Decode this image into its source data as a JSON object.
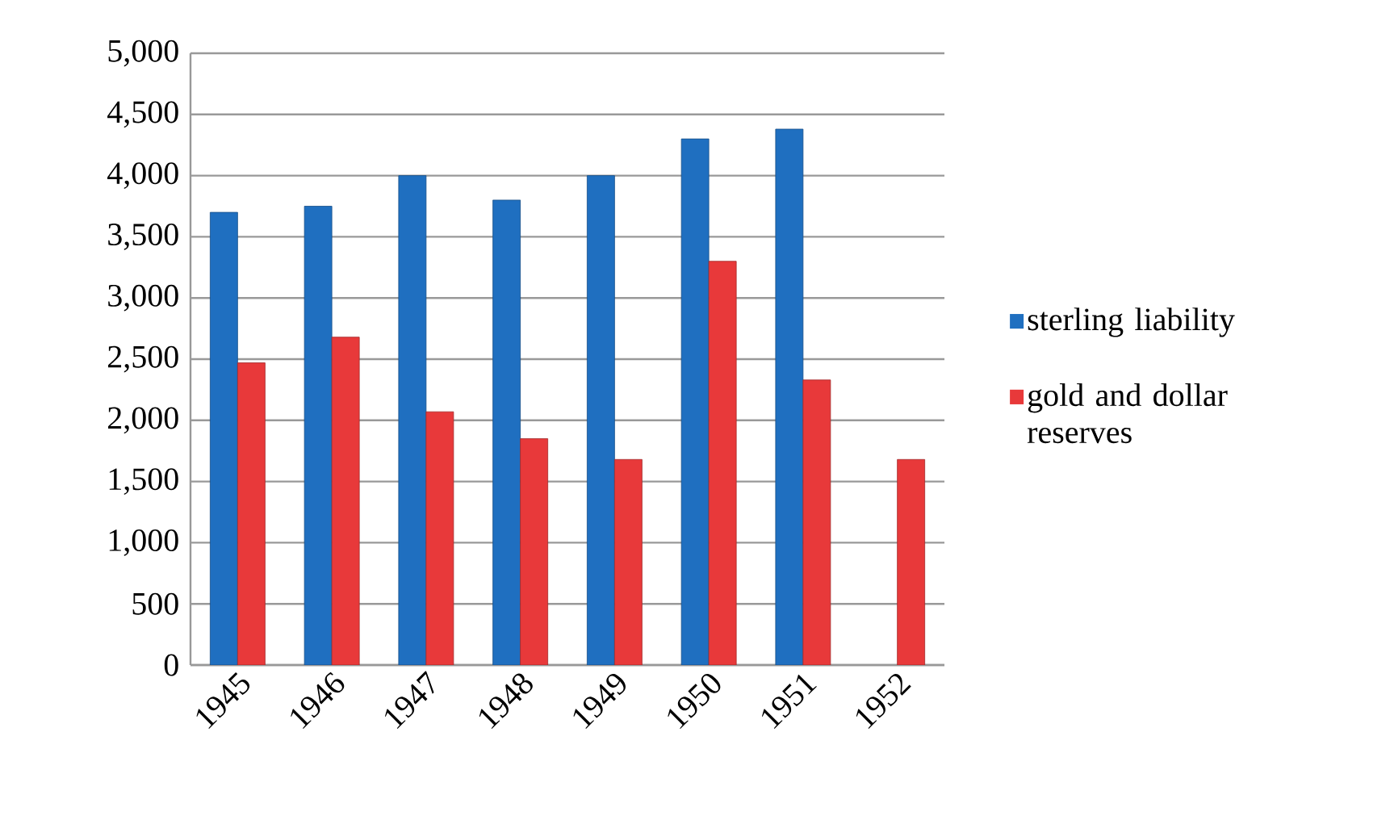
{
  "chart_data": {
    "type": "bar",
    "categories": [
      "1945",
      "1946",
      "1947",
      "1948",
      "1949",
      "1950",
      "1951",
      "1952"
    ],
    "series": [
      {
        "name": "sterling liability",
        "color": "#1f6fc0",
        "values": [
          3700,
          3750,
          4000,
          3800,
          4000,
          4300,
          4380,
          null
        ]
      },
      {
        "name": "gold and dollar reserves",
        "color": "#e8393a",
        "values": [
          2470,
          2680,
          2070,
          1850,
          1680,
          3300,
          2330,
          1680
        ]
      }
    ],
    "ylim": [
      0,
      5000
    ],
    "yticks": [
      {
        "value": 0,
        "label": "0"
      },
      {
        "value": 500,
        "label": "500"
      },
      {
        "value": 1000,
        "label": "1,000"
      },
      {
        "value": 1500,
        "label": "1,500"
      },
      {
        "value": 2000,
        "label": "2,000"
      },
      {
        "value": 2500,
        "label": "2,500"
      },
      {
        "value": 3000,
        "label": "3,000"
      },
      {
        "value": 3500,
        "label": "3,500"
      },
      {
        "value": 4000,
        "label": "4,000"
      },
      {
        "value": 4500,
        "label": "4,500"
      },
      {
        "value": 5000,
        "label": "5,000"
      }
    ],
    "grid": "y",
    "legend": "right"
  }
}
